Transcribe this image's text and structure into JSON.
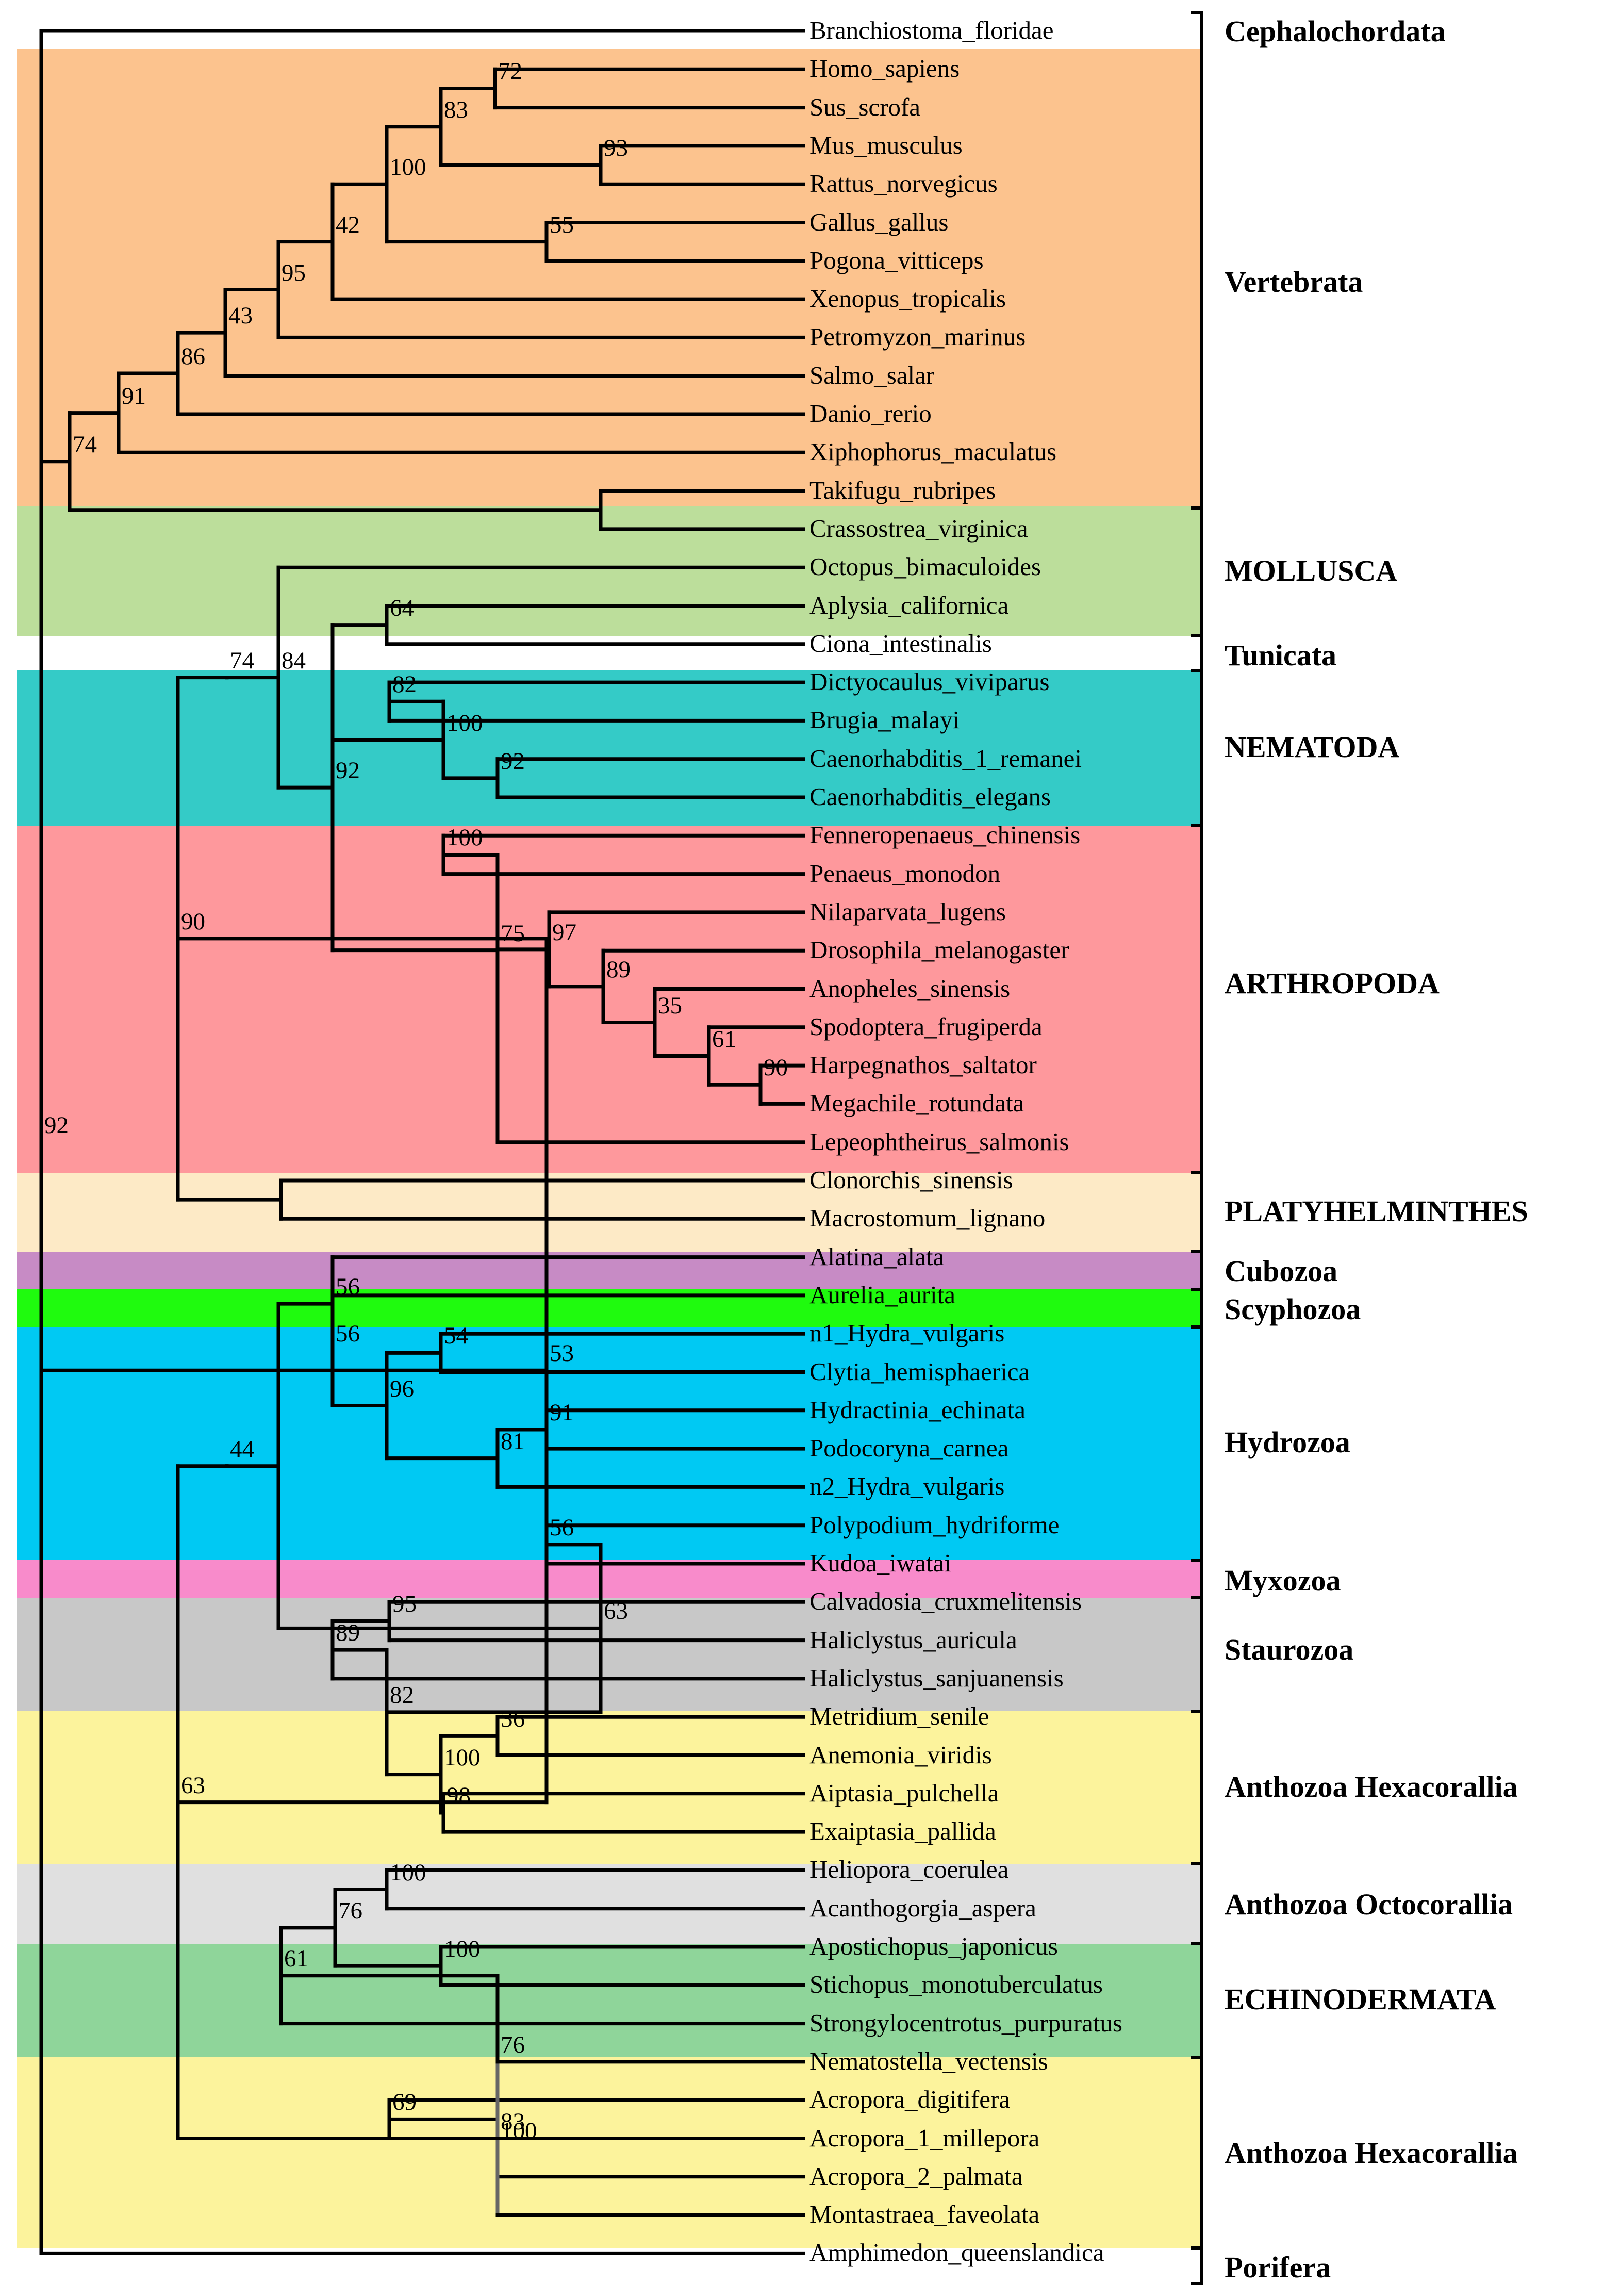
{
  "colors": {
    "vertebrata": "#FCC38E",
    "mollusca": "#BCDE9B",
    "nematoda": "#34CBC7",
    "arthropoda": "#FE989C",
    "platyhelminthes": "#FDEAC6",
    "cubozoa": "#C78BC5",
    "scyphozoa": "#1FFB0E",
    "hydrozoa": "#00C9F3",
    "myxozoa": "#F88BCB",
    "staurozoa": "#C8C8C8",
    "hexacorallia": "#FCF39C",
    "octocorallia": "#E0E0E0",
    "echinodermata": "#8FD59A",
    "line": "#000000",
    "line_grey": "#666666"
  },
  "leaves": [
    "Branchiostoma_floridae",
    "Homo_sapiens",
    "Sus_scrofa",
    "Mus_musculus",
    "Rattus_norvegicus",
    "Gallus_gallus",
    "Pogona_vitticeps",
    "Xenopus_tropicalis",
    "Petromyzon_marinus",
    "Salmo_salar",
    "Danio_rerio",
    "Xiphophorus_maculatus",
    "Takifugu_rubripes",
    "Crassostrea_virginica",
    "Octopus_bimaculoides",
    "Aplysia_californica",
    "Ciona_intestinalis",
    "Dictyocaulus_viviparus",
    "Brugia_malayi",
    "Caenorhabditis_1_remanei",
    "Caenorhabditis_elegans",
    "Fenneropenaeus_chinensis",
    "Penaeus_monodon",
    "Nilaparvata_lugens",
    "Drosophila_melanogaster",
    "Anopheles_sinensis",
    "Spodoptera_frugiperda",
    "Harpegnathos_saltator",
    "Megachile_rotundata",
    "Lepeophtheirus_salmonis",
    "Clonorchis_sinensis",
    "Macrostomum_lignano",
    "Alatina_alata",
    "Aurelia_aurita",
    "n1_Hydra_vulgaris",
    "Clytia_hemisphaerica",
    "Hydractinia_echinata",
    "Podocoryna_carnea",
    "n2_Hydra_vulgaris",
    "Polypodium_hydriforme",
    "Kudoa_iwatai",
    "Calvadosia_cruxmelitensis",
    "Haliclystus_auricula",
    "Haliclystus_sanjuanensis",
    "Metridium_senile",
    "Anemonia_viridis",
    "Aiptasia_pulchella",
    "Exaiptasia_pallida",
    "Heliopora_coerulea",
    "Acanthogorgia_aspera",
    "Apostichopus_japonicus",
    "Stichopus_monotuberculatus",
    "Strongylocentrotus_purpuratus",
    "Nematostella_vectensis",
    "Acropora_digitifera",
    "Acropora_1_millepora",
    "Acropora_2_palmata",
    "Montastraea_faveolata",
    "Amphimedon_queenslandica"
  ],
  "groups": [
    {
      "id": "cephalochordata",
      "label": "Cephalochordata"
    },
    {
      "id": "vertebrata",
      "label": "Vertebrata"
    },
    {
      "id": "mollusca",
      "label": "MOLLUSCA"
    },
    {
      "id": "tunicata",
      "label": "Tunicata"
    },
    {
      "id": "nematoda",
      "label": "NEMATODA"
    },
    {
      "id": "arthropoda",
      "label": "ARTHROPODA"
    },
    {
      "id": "platyhelminthes",
      "label": "PLATYHELMINTHES"
    },
    {
      "id": "cubozoa",
      "label": "Cubozoa"
    },
    {
      "id": "scyphozoa",
      "label": "Scyphozoa"
    },
    {
      "id": "hydrozoa",
      "label": "Hydrozoa"
    },
    {
      "id": "myxozoa",
      "label": "Myxozoa"
    },
    {
      "id": "staurozoa",
      "label": "Staurozoa"
    },
    {
      "id": "hexacorallia_1",
      "label": "Anthozoa Hexacorallia"
    },
    {
      "id": "octocorallia",
      "label": "Anthozoa Octocorallia"
    },
    {
      "id": "echinodermata",
      "label": "ECHINODERMATA"
    },
    {
      "id": "hexacorallia_2",
      "label": "Anthozoa Hexacorallia"
    },
    {
      "id": "porifera",
      "label": "Porifera"
    }
  ],
  "tree": {
    "n": "92",
    "c": [
      {
        "l": 0
      },
      {
        "n": "74",
        "c": [
          {
            "n": "91",
            "c": [
              {
                "n": "86",
                "c": [
                  {
                    "n": "43",
                    "c": [
                      {
                        "n": "95",
                        "c": [
                          {
                            "n": "42",
                            "c": [
                              {
                                "n": "100",
                                "c": [
                                  {
                                    "n": "83",
                                    "c": [
                                      {
                                        "n": "72",
                                        "c": [
                                          {
                                            "l": 1
                                          },
                                          {
                                            "l": 2
                                          }
                                        ]
                                      },
                                      {
                                        "n": "93",
                                        "c": [
                                          {
                                            "l": 3
                                          },
                                          {
                                            "l": 4
                                          }
                                        ]
                                      }
                                    ]
                                  },
                                  {
                                    "n": "55",
                                    "c": [
                                      {
                                        "l": 5
                                      },
                                      {
                                        "l": 6
                                      }
                                    ]
                                  }
                                ]
                              },
                              {
                                "l": 7
                              }
                            ]
                          },
                          {
                            "l": 8
                          }
                        ]
                      },
                      {
                        "l": 9
                      }
                    ]
                  },
                  {
                    "l": 10
                  }
                ]
              },
              {
                "l": 11
              }
            ]
          },
          {
            "n": "",
            "c": [
              {
                "l": 12
              },
              {
                "l": 13
              }
            ]
          }
        ]
      },
      {
        "n": "53",
        "c": [
          {
            "n": "90",
            "c": [
              {
                "n": "74",
                "c": [
                  {
                    "n": "84",
                    "c": [
                      {
                        "l": 14
                      },
                      {
                        "n": "92",
                        "c": [
                          {
                            "n": "64",
                            "c": [
                              {
                                "l": 15
                              },
                              {
                                "l": 16
                              }
                            ]
                          },
                          {
                            "n": "100",
                            "c": [
                              {
                                "n": "82",
                                "c": [
                                  {
                                    "l": 17
                                  },
                                  {
                                    "l": 18
                                  }
                                ]
                              },
                              {
                                "n": "92",
                                "c": [
                                  {
                                    "l": 19
                                  },
                                  {
                                    "l": 20
                                  }
                                ]
                              }
                            ]
                          },
                          {
                            "n": "75",
                            "c": [
                              {
                                "n": "100",
                                "c": [
                                  {
                                    "l": 21
                                  },
                                  {
                                    "l": 22
                                  }
                                ]
                              },
                              {
                                "n": "",
                                "c": [
                                  {
                                    "n": "97",
                                    "c": [
                                      {
                                        "l": 23
                                      },
                                      {
                                        "n": "89",
                                        "c": [
                                          {
                                            "l": 24
                                          },
                                          {
                                            "n": "35",
                                            "c": [
                                              {
                                                "l": 25
                                              },
                                              {
                                                "n": "61",
                                                "c": [
                                                  {
                                                    "l": 26
                                                  },
                                                  {
                                                    "n": "90",
                                                    "c": [
                                                      {
                                                        "l": 27
                                                      },
                                                      {
                                                        "l": 28
                                                      }
                                                    ]
                                                  }
                                                ]
                                              }
                                            ]
                                          }
                                        ]
                                      }
                                    ]
                                  },
                                  {
                                    "l": 29
                                  }
                                ]
                              }
                            ]
                          }
                        ]
                      }
                    ]
                  }
                ]
              },
              {
                "n": "",
                "c": [
                  {
                    "l": 30
                  },
                  {
                    "l": 31
                  }
                ]
              }
            ]
          },
          {
            "n": "63",
            "c": [
              {
                "n": "44",
                "c": [
                  {
                    "n": "",
                    "c": [
                      {
                        "n": "56",
                        "c": [
                          {
                            "l": 32
                          },
                          {
                            "n": "56",
                            "c": [
                              {
                                "l": 33
                              },
                              {
                                "n": "96",
                                "c": [
                                  {
                                    "n": "54",
                                    "c": [
                                      {
                                        "l": 34
                                      },
                                      {
                                        "l": 35
                                      }
                                    ]
                                  },
                                  {
                                    "n": "81",
                                    "c": [
                                      {
                                        "n": "91",
                                        "c": [
                                          {
                                            "l": 36
                                          },
                                          {
                                            "l": 37
                                          }
                                        ]
                                      },
                                      {
                                        "l": 38
                                      }
                                    ]
                                  }
                                ]
                              }
                            ]
                          }
                        ]
                      },
                      {
                        "n": "63",
                        "c": [
                          {
                            "n": "56",
                            "c": [
                              {
                                "l": 39
                              },
                              {
                                "l": 40
                              }
                            ]
                          },
                          {
                            "n": "82",
                            "c": [
                              {
                                "n": "89",
                                "c": [
                                  {
                                    "n": "95",
                                    "c": [
                                      {
                                        "l": 41
                                      },
                                      {
                                        "l": 42
                                      }
                                    ]
                                  },
                                  {
                                    "l": 43
                                  }
                                ]
                              },
                              {
                                "n": "100",
                                "c": [
                                  {
                                    "n": "36",
                                    "c": [
                                      {
                                        "l": 44
                                      },
                                      {
                                        "l": 45
                                      }
                                    ]
                                  },
                                  {
                                    "n": "98",
                                    "c": [
                                      {
                                        "l": 46
                                      },
                                      {
                                        "l": 47
                                      }
                                    ]
                                  }
                                ]
                              }
                            ]
                          }
                        ]
                      }
                    ]
                  }
                ]
              },
              {
                "n": "83",
                "g": true,
                "c": [
                  {
                    "n": "76",
                    "c": [
                      {
                        "n": "61",
                        "c": [
                          {
                            "n": "76",
                            "c": [
                              {
                                "n": "100",
                                "c": [
                                  {
                                    "l": 48
                                  },
                                  {
                                    "l": 49
                                  }
                                ]
                              },
                              {
                                "n": "100",
                                "c": [
                                  {
                                    "l": 50
                                  },
                                  {
                                    "l": 51
                                  }
                                ]
                              }
                            ]
                          },
                          {
                            "l": 52
                          }
                        ]
                      },
                      {
                        "n": "",
                        "c": [
                          {
                            "l": 53
                          }
                        ]
                      },
                      {
                        "n": "100",
                        "c": [
                          {
                            "n": "69",
                            "c": [
                              {
                                "l": 54
                              },
                              {
                                "l": 55
                              }
                            ]
                          },
                          {
                            "l": 56
                          }
                        ]
                      }
                    ]
                  },
                  {
                    "l": 57
                  }
                ]
              }
            ]
          }
        ]
      },
      {
        "l": 58
      }
    ]
  }
}
